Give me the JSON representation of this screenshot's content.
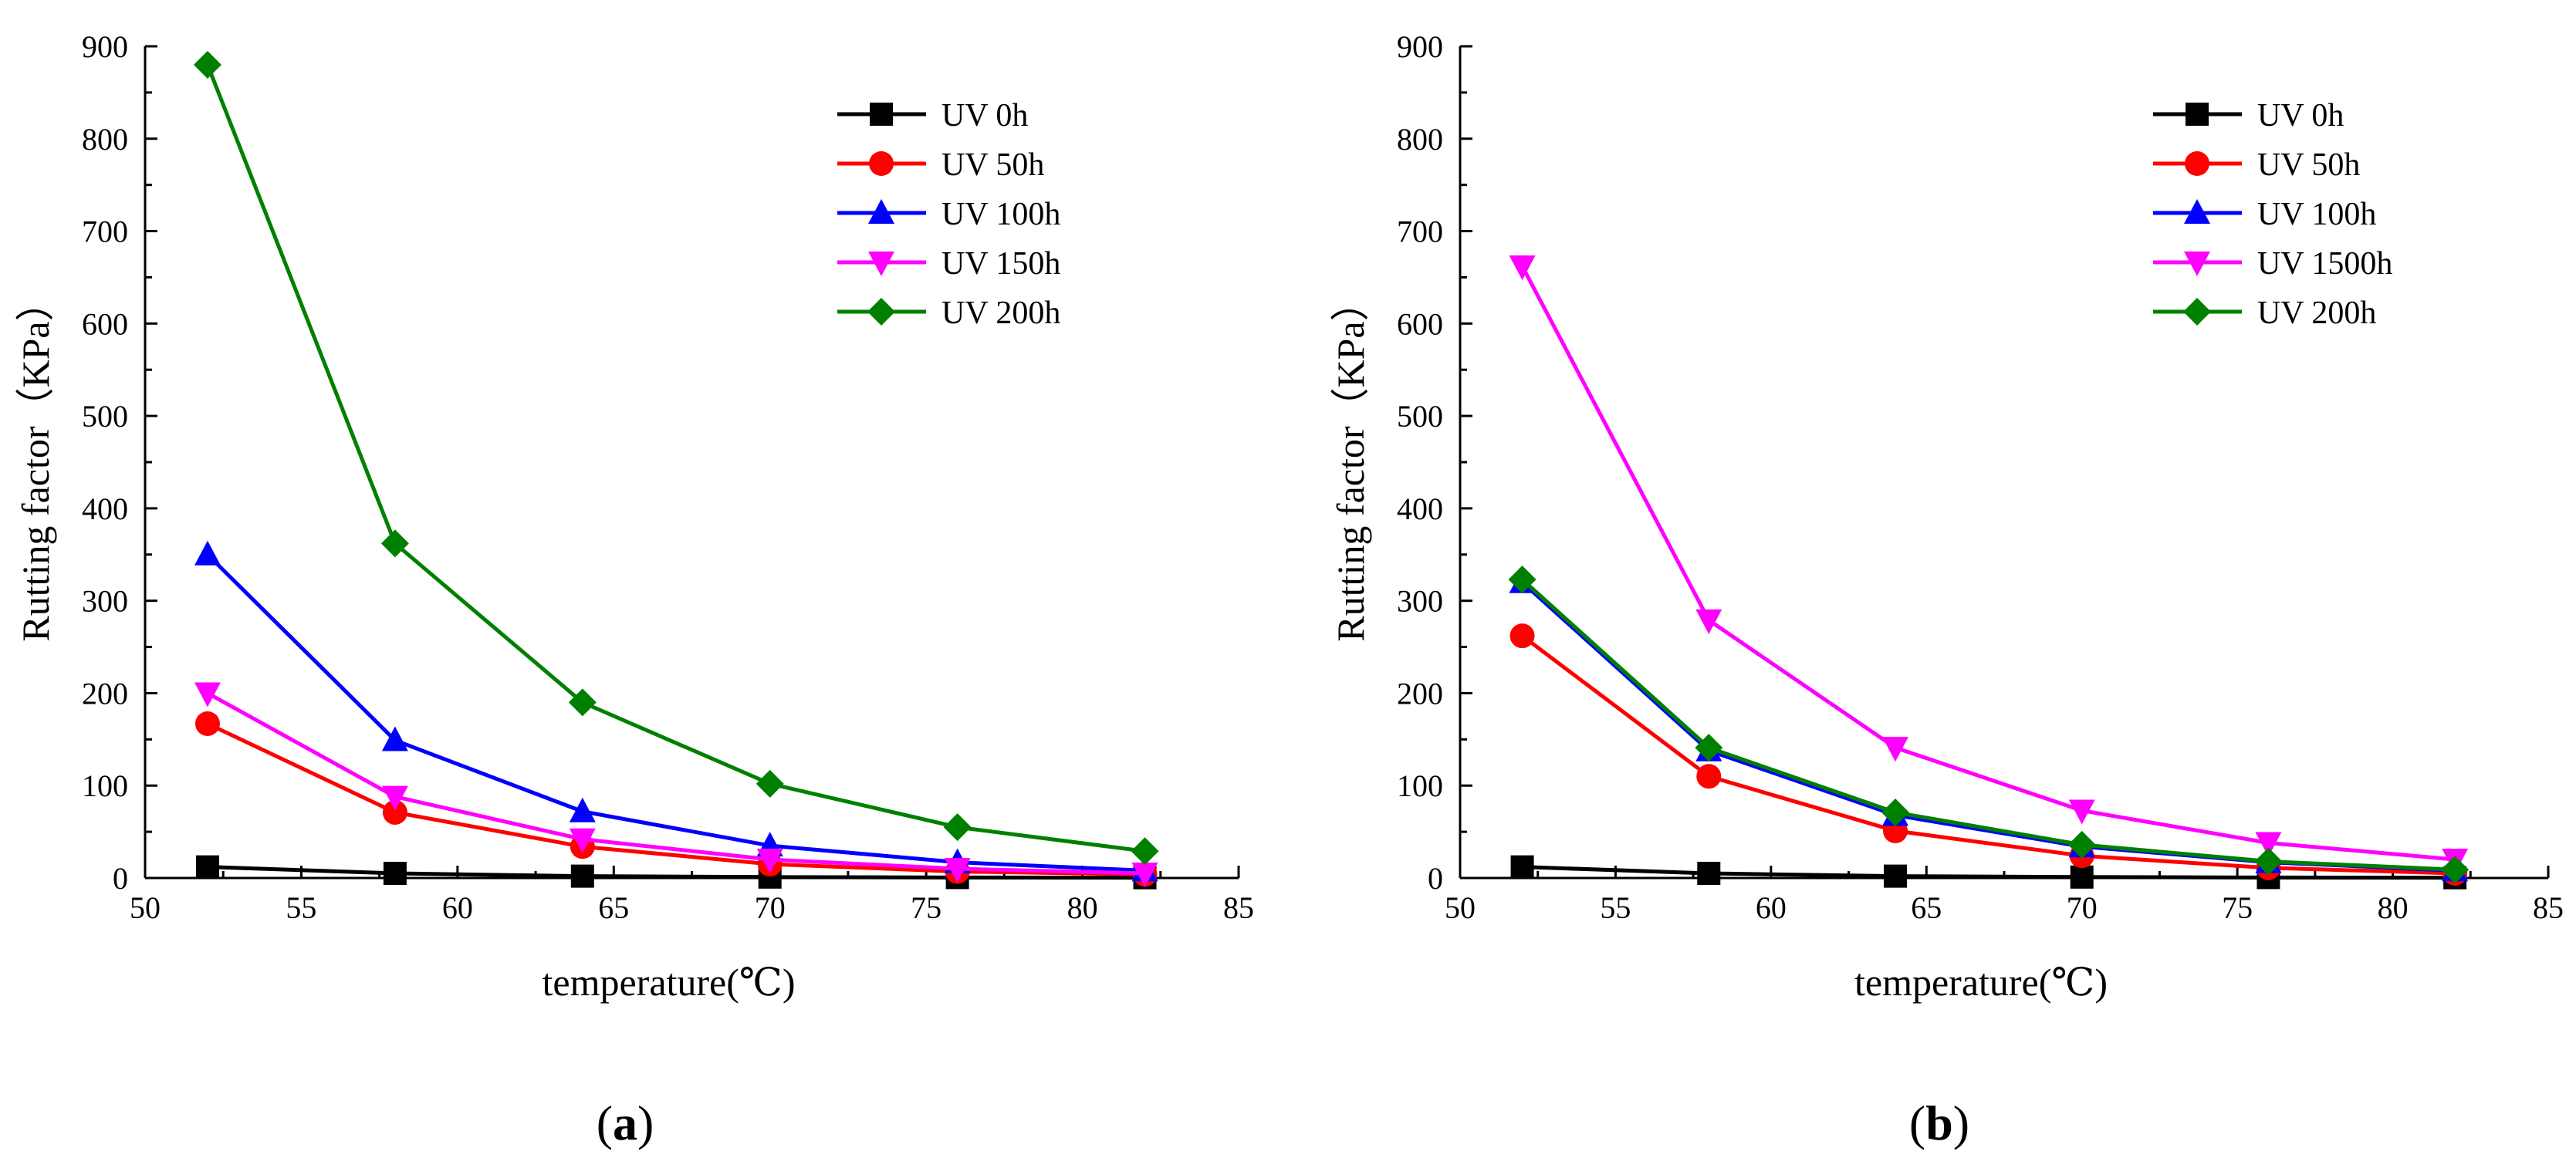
{
  "figure": {
    "panels": [
      {
        "open": "(",
        "letter": "a",
        "close": ")"
      },
      {
        "open": "(",
        "letter": "b",
        "close": ")"
      }
    ]
  },
  "chart_data": [
    {
      "type": "line",
      "xlabel": "temperature(℃)",
      "ylabel": "Rutting factor（KPa）",
      "xlim": [
        50,
        85
      ],
      "ylim": [
        0,
        900
      ],
      "xticks": [
        50,
        55,
        60,
        65,
        70,
        75,
        80,
        85
      ],
      "yticks": [
        0,
        100,
        200,
        300,
        400,
        500,
        600,
        700,
        800,
        900
      ],
      "grid": false,
      "legend_position": "top-right",
      "x": [
        52,
        58,
        64,
        70,
        76,
        82
      ],
      "series": [
        {
          "name": "UV 0h",
          "color": "#000000",
          "marker": "square",
          "values": [
            12,
            5,
            2,
            1,
            0.5,
            0.3
          ]
        },
        {
          "name": "UV 50h",
          "color": "#ff0000",
          "marker": "circle",
          "values": [
            167,
            71,
            34,
            15,
            7,
            4
          ]
        },
        {
          "name": "UV 100h",
          "color": "#0000ff",
          "marker": "triangle-up",
          "values": [
            350,
            149,
            72,
            35,
            17,
            8
          ]
        },
        {
          "name": "UV 150h",
          "color": "#ff00ff",
          "marker": "triangle-down",
          "values": [
            200,
            88,
            42,
            20,
            10,
            5
          ]
        },
        {
          "name": "UV 200h",
          "color": "#008000",
          "marker": "diamond",
          "values": [
            880,
            362,
            190,
            102,
            55,
            29
          ]
        }
      ]
    },
    {
      "type": "line",
      "xlabel": "temperature(℃)",
      "ylabel": "Rutting factor（KPa）",
      "xlim": [
        50,
        85
      ],
      "ylim": [
        0,
        900
      ],
      "xticks": [
        50,
        55,
        60,
        65,
        70,
        75,
        80,
        85
      ],
      "yticks": [
        0,
        100,
        200,
        300,
        400,
        500,
        600,
        700,
        800,
        900
      ],
      "grid": false,
      "legend_position": "top-right",
      "x": [
        52,
        58,
        64,
        70,
        76,
        82
      ],
      "series": [
        {
          "name": "UV 0h",
          "color": "#000000",
          "marker": "square",
          "values": [
            12,
            5,
            2,
            1,
            0.5,
            0.3
          ]
        },
        {
          "name": "UV 50h",
          "color": "#ff0000",
          "marker": "circle",
          "values": [
            262,
            110,
            51,
            24,
            11,
            5
          ]
        },
        {
          "name": "UV 100h",
          "color": "#0000ff",
          "marker": "triangle-up",
          "values": [
            320,
            138,
            68,
            34,
            17,
            8
          ]
        },
        {
          "name": "UV 1500h",
          "color": "#ff00ff",
          "marker": "triangle-down",
          "values": [
            662,
            279,
            141,
            73,
            38,
            20
          ]
        },
        {
          "name": "UV 200h",
          "color": "#008000",
          "marker": "diamond",
          "values": [
            323,
            141,
            71,
            36,
            18,
            9
          ]
        }
      ]
    }
  ]
}
